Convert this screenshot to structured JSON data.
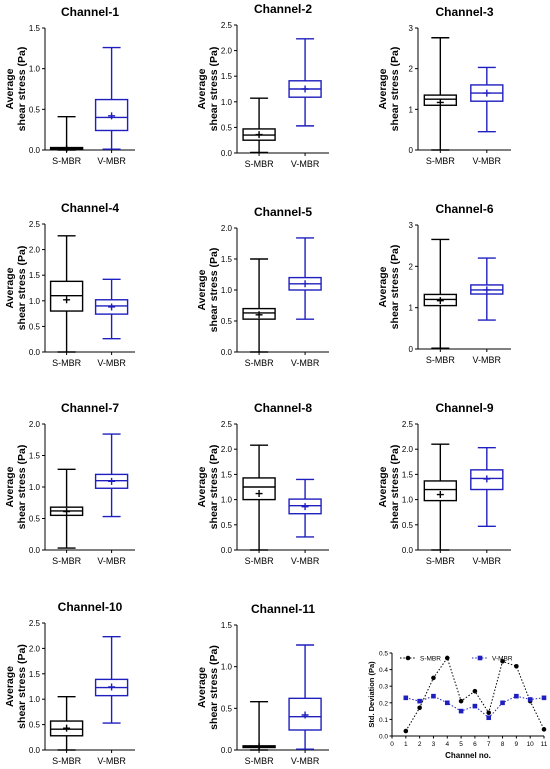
{
  "colors": {
    "smbr": "#000000",
    "vmbr": "#1f1fbf"
  },
  "chart_data": [
    {
      "type": "box",
      "title": "Channel-1",
      "ylabel": [
        "Average",
        "shear stress (Pa)"
      ],
      "categories": [
        "S-MBR",
        "V-MBR"
      ],
      "ylim": [
        0,
        1.5
      ],
      "yticks": [
        "0.0",
        "0.5",
        "1.0",
        "1.5"
      ],
      "boxes": [
        {
          "name": "S-MBR",
          "min": 0.0,
          "q1": 0.01,
          "median": 0.02,
          "q3": 0.03,
          "max": 0.41,
          "mean": 0.02
        },
        {
          "name": "V-MBR",
          "min": 0.01,
          "q1": 0.24,
          "median": 0.4,
          "q3": 0.62,
          "max": 1.26,
          "mean": 0.42
        }
      ]
    },
    {
      "type": "box",
      "title": "Channel-2",
      "ylabel": [
        "Average",
        "shear stress (Pa)"
      ],
      "categories": [
        "S-MBR",
        "V-MBR"
      ],
      "ylim": [
        0,
        2.5
      ],
      "yticks": [
        "0.0",
        "0.5",
        "1.0",
        "1.5",
        "2.0",
        "2.5"
      ],
      "boxes": [
        {
          "name": "S-MBR",
          "min": 0.01,
          "q1": 0.25,
          "median": 0.35,
          "q3": 0.47,
          "max": 1.07,
          "mean": 0.36
        },
        {
          "name": "V-MBR",
          "min": 0.53,
          "q1": 1.09,
          "median": 1.25,
          "q3": 1.41,
          "max": 2.23,
          "mean": 1.25
        }
      ]
    },
    {
      "type": "box",
      "title": "Channel-3",
      "ylabel": [
        "Average",
        "shear stress (Pa)"
      ],
      "categories": [
        "S-MBR",
        "V-MBR"
      ],
      "ylim": [
        0,
        3
      ],
      "yticks": [
        "0",
        "1",
        "2",
        "3"
      ],
      "boxes": [
        {
          "name": "S-MBR",
          "min": 0.0,
          "q1": 1.1,
          "median": 1.25,
          "q3": 1.35,
          "max": 2.76,
          "mean": 1.17
        },
        {
          "name": "V-MBR",
          "min": 0.45,
          "q1": 1.2,
          "median": 1.4,
          "q3": 1.6,
          "max": 2.03,
          "mean": 1.4
        }
      ]
    },
    {
      "type": "box",
      "title": "Channel-4",
      "ylabel": [
        "Average",
        "shear stress (Pa)"
      ],
      "categories": [
        "S-MBR",
        "V-MBR"
      ],
      "ylim": [
        0,
        2.5
      ],
      "yticks": [
        "0.0",
        "0.5",
        "1.0",
        "1.5",
        "2.0",
        "2.5"
      ],
      "boxes": [
        {
          "name": "S-MBR",
          "min": 0.0,
          "q1": 0.8,
          "median": 1.1,
          "q3": 1.38,
          "max": 2.27,
          "mean": 1.02
        },
        {
          "name": "V-MBR",
          "min": 0.26,
          "q1": 0.74,
          "median": 0.9,
          "q3": 1.02,
          "max": 1.42,
          "mean": 0.88
        }
      ]
    },
    {
      "type": "box",
      "title": "Channel-5",
      "ylabel": [
        "Average",
        "shear stress (Pa)"
      ],
      "categories": [
        "S-MBR",
        "V-MBR"
      ],
      "ylim": [
        0,
        2
      ],
      "yticks": [
        "0.0",
        "0.5",
        "1.0",
        "1.5",
        "2.0"
      ],
      "boxes": [
        {
          "name": "S-MBR",
          "min": 0.0,
          "q1": 0.53,
          "median": 0.63,
          "q3": 0.7,
          "max": 1.5,
          "mean": 0.6
        },
        {
          "name": "V-MBR",
          "min": 0.53,
          "q1": 1.0,
          "median": 1.1,
          "q3": 1.2,
          "max": 1.84,
          "mean": 1.1
        }
      ]
    },
    {
      "type": "box",
      "title": "Channel-6",
      "ylabel": [
        "Average",
        "shear stress (Pa)"
      ],
      "categories": [
        "S-MBR",
        "V-MBR"
      ],
      "ylim": [
        0,
        3
      ],
      "yticks": [
        "0",
        "1",
        "2",
        "3"
      ],
      "boxes": [
        {
          "name": "S-MBR",
          "min": 0.02,
          "q1": 1.05,
          "median": 1.2,
          "q3": 1.32,
          "max": 2.65,
          "mean": 1.17
        },
        {
          "name": "V-MBR",
          "min": 0.7,
          "q1": 1.33,
          "median": 1.43,
          "q3": 1.55,
          "max": 2.2,
          "mean": 1.43
        }
      ]
    },
    {
      "type": "box",
      "title": "Channel-7",
      "ylabel": [
        "Average",
        "shear stress (Pa)"
      ],
      "categories": [
        "S-MBR",
        "V-MBR"
      ],
      "ylim": [
        0,
        2
      ],
      "yticks": [
        "0.0",
        "0.5",
        "1.0",
        "1.5",
        "2.0"
      ],
      "boxes": [
        {
          "name": "S-MBR",
          "min": 0.03,
          "q1": 0.55,
          "median": 0.62,
          "q3": 0.68,
          "max": 1.28,
          "mean": 0.61
        },
        {
          "name": "V-MBR",
          "min": 0.53,
          "q1": 0.98,
          "median": 1.1,
          "q3": 1.2,
          "max": 1.84,
          "mean": 1.09
        }
      ]
    },
    {
      "type": "box",
      "title": "Channel-8",
      "ylabel": [
        "Average",
        "shear stress (Pa)"
      ],
      "categories": [
        "S-MBR",
        "V-MBR"
      ],
      "ylim": [
        0,
        2.5
      ],
      "yticks": [
        "0.0",
        "0.5",
        "1.0",
        "1.5",
        "2.0",
        "2.5"
      ],
      "boxes": [
        {
          "name": "S-MBR",
          "min": 0.0,
          "q1": 1.0,
          "median": 1.25,
          "q3": 1.43,
          "max": 2.08,
          "mean": 1.12
        },
        {
          "name": "V-MBR",
          "min": 0.26,
          "q1": 0.72,
          "median": 0.88,
          "q3": 1.01,
          "max": 1.4,
          "mean": 0.86
        }
      ]
    },
    {
      "type": "box",
      "title": "Channel-9",
      "ylabel": [
        "Average",
        "shear stress (Pa)"
      ],
      "categories": [
        "S-MBR",
        "V-MBR"
      ],
      "ylim": [
        0,
        2.5
      ],
      "yticks": [
        "0.0",
        "0.5",
        "1.0",
        "1.5",
        "2.0",
        "2.5"
      ],
      "boxes": [
        {
          "name": "S-MBR",
          "min": 0.0,
          "q1": 0.98,
          "median": 1.2,
          "q3": 1.37,
          "max": 2.1,
          "mean": 1.1
        },
        {
          "name": "V-MBR",
          "min": 0.47,
          "q1": 1.2,
          "median": 1.42,
          "q3": 1.59,
          "max": 2.03,
          "mean": 1.41
        }
      ]
    },
    {
      "type": "box",
      "title": "Channel-10",
      "ylabel": [
        "Average",
        "shear stress (Pa)"
      ],
      "categories": [
        "S-MBR",
        "V-MBR"
      ],
      "ylim": [
        0,
        2.5
      ],
      "yticks": [
        "0.0",
        "0.5",
        "1.0",
        "1.5",
        "2.0",
        "2.5"
      ],
      "boxes": [
        {
          "name": "S-MBR",
          "min": 0.0,
          "q1": 0.28,
          "median": 0.41,
          "q3": 0.57,
          "max": 1.05,
          "mean": 0.43
        },
        {
          "name": "V-MBR",
          "min": 0.53,
          "q1": 1.07,
          "median": 1.23,
          "q3": 1.39,
          "max": 2.23,
          "mean": 1.24
        }
      ]
    },
    {
      "type": "box",
      "title": "Channel-11",
      "ylabel": [
        "Average",
        "shear stress (Pa)"
      ],
      "categories": [
        "S-MBR",
        "V-MBR"
      ],
      "ylim": [
        0,
        1.5
      ],
      "yticks": [
        "0.0",
        "0.5",
        "1.0",
        "1.5"
      ],
      "boxes": [
        {
          "name": "S-MBR",
          "min": 0.0,
          "q1": 0.03,
          "median": 0.04,
          "q3": 0.05,
          "max": 0.58,
          "mean": 0.04
        },
        {
          "name": "V-MBR",
          "min": 0.01,
          "q1": 0.24,
          "median": 0.4,
          "q3": 0.62,
          "max": 1.26,
          "mean": 0.42
        }
      ]
    },
    {
      "type": "line",
      "title": "",
      "xlabel": "Channel no.",
      "ylabel": "Std. Deviation (Pa)",
      "xlim": [
        0,
        11
      ],
      "ylim": [
        0,
        0.5
      ],
      "xticks": [
        "0",
        "1",
        "2",
        "3",
        "4",
        "5",
        "6",
        "7",
        "8",
        "9",
        "10",
        "11"
      ],
      "yticks": [
        "0.0",
        "0.1",
        "0.2",
        "0.3",
        "0.4",
        "0.5"
      ],
      "legend_position": "top",
      "x": [
        1,
        2,
        3,
        4,
        5,
        6,
        7,
        8,
        9,
        10,
        11
      ],
      "series": [
        {
          "name": "S-MBR",
          "values": [
            0.03,
            0.17,
            0.35,
            0.47,
            0.21,
            0.27,
            0.14,
            0.45,
            0.42,
            0.21,
            0.04
          ]
        },
        {
          "name": "V-MBR",
          "values": [
            0.23,
            0.21,
            0.24,
            0.2,
            0.15,
            0.18,
            0.11,
            0.2,
            0.24,
            0.22,
            0.23
          ]
        }
      ]
    }
  ]
}
